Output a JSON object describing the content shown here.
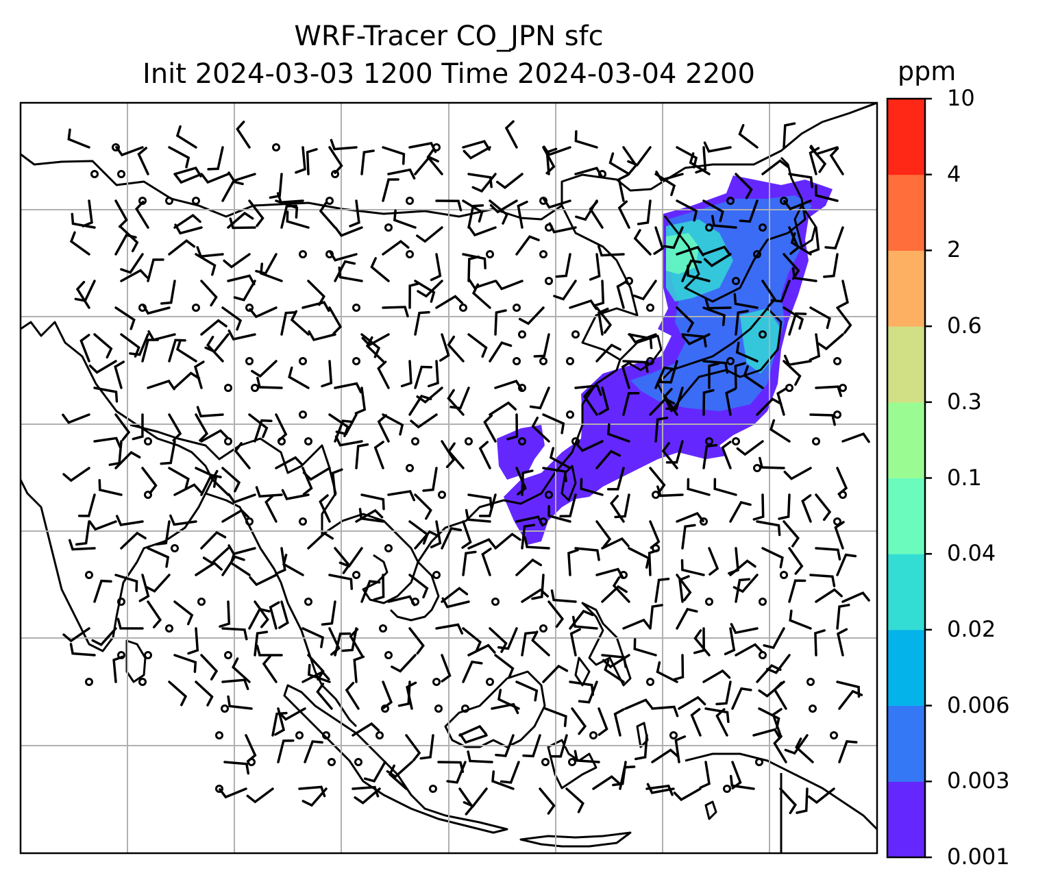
{
  "title_line1": "WRF-Tracer CO_JPN sfc",
  "title_line2": "Init 2024-03-03 1200 Time 2024-03-04 2200",
  "colorbar": {
    "unit": "ppm",
    "levels": [
      "0.001",
      "0.003",
      "0.006",
      "0.02",
      "0.04",
      "0.1",
      "0.3",
      "0.6",
      "2",
      "4",
      "10"
    ],
    "colors": [
      "#6428ff",
      "#3478f5",
      "#05b3eb",
      "#33ddd4",
      "#6bfcbd",
      "#9bfb93",
      "#d1e085",
      "#feb062",
      "#ff6e3b",
      "#ff2716"
    ]
  },
  "map": {
    "gridlines": true,
    "wind_barbs": true,
    "tracer_colors": {
      "low": "#6428ff",
      "mid": "#3478f5",
      "high": "#33ddd4",
      "peak": "#6bfcbd"
    }
  }
}
